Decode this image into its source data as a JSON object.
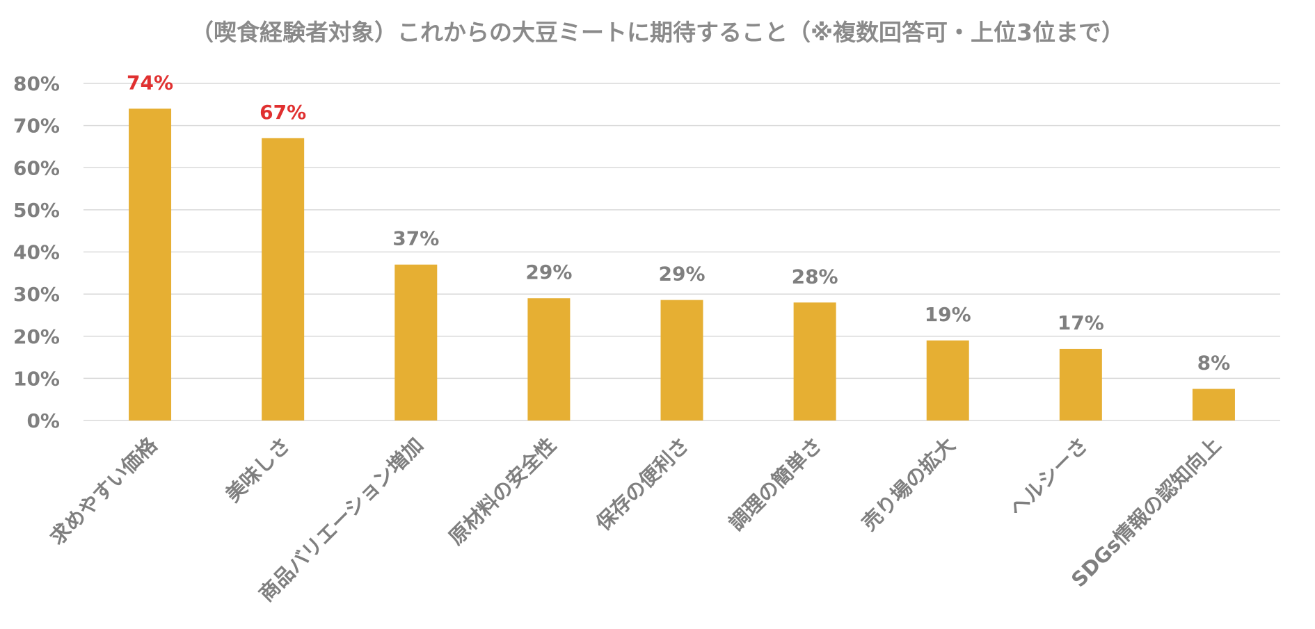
{
  "chart_data": {
    "type": "bar",
    "title": "（喫食経験者対象）これからの大豆ミートに期待すること（※複数回答可・上位3位まで）",
    "categories": [
      "求めやすい価格",
      "美味しさ",
      "商品バリエーション増加",
      "原材料の安全性",
      "保存の便利さ",
      "調理の簡単さ",
      "売り場の拡大",
      "ヘルシーさ",
      "SDGs情報の認知向上"
    ],
    "values": [
      74,
      67,
      37,
      29,
      28.6,
      28,
      19,
      17,
      7.5
    ],
    "data_labels": [
      "74%",
      "67%",
      "37%",
      "29%",
      "29%",
      "28%",
      "19%",
      "17%",
      "8%"
    ],
    "highlight_count": 2,
    "ylim": [
      0,
      80
    ],
    "yticks": [
      0,
      10,
      20,
      30,
      40,
      50,
      60,
      70,
      80
    ],
    "ytick_labels": [
      "0%",
      "10%",
      "20%",
      "30%",
      "40%",
      "50%",
      "60%",
      "70%",
      "80%"
    ],
    "xlabel": "",
    "ylabel": "",
    "grid": true,
    "legend": "none",
    "colors": {
      "bar": "#E6AF33",
      "highlight_label": "#E03030",
      "label": "#7f7f7f",
      "grid": "#d9d9d9",
      "title": "#8a8a8a"
    }
  }
}
